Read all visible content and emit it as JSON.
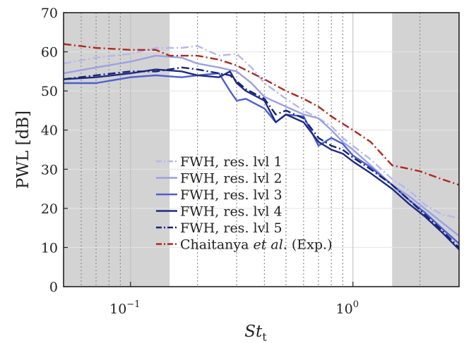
{
  "chart_data": {
    "type": "line",
    "xlabel_main": "St",
    "xlabel_sub": "t",
    "ylabel": "PWL [dB]",
    "xscale": "log",
    "xlim": [
      0.05,
      3
    ],
    "ylim": [
      0,
      70
    ],
    "yticks": [
      0,
      10,
      20,
      30,
      40,
      50,
      60,
      70
    ],
    "xtick_labels": [
      {
        "x": 0.1,
        "base": "10",
        "exp": "−1"
      },
      {
        "x": 1,
        "base": "10",
        "exp": "0"
      }
    ],
    "minor_xticks": [
      0.06,
      0.07,
      0.08,
      0.09,
      0.2,
      0.3,
      0.4,
      0.5,
      0.6,
      0.7,
      0.8,
      0.9,
      2
    ],
    "shaded_regions": [
      [
        0.05,
        0.15
      ],
      [
        1.5,
        3
      ]
    ],
    "grid": true,
    "legend_position": "bottom-center",
    "series": [
      {
        "name": "FWH, res. lvl 1",
        "color": "#b4b8ec",
        "dash": "dashdot",
        "x": [
          0.05,
          0.07,
          0.1,
          0.13,
          0.17,
          0.2,
          0.25,
          0.3,
          0.35,
          0.4,
          0.5,
          0.6,
          0.7,
          0.8,
          0.9,
          1.0,
          1.2,
          1.5,
          1.8,
          2.1,
          2.5,
          3.0
        ],
        "y": [
          57,
          58.5,
          59.5,
          61,
          61,
          61.5,
          59,
          59.5,
          56,
          52,
          48,
          45,
          43,
          41,
          38,
          36,
          32.5,
          27.5,
          24.5,
          21,
          18.5,
          17.5
        ]
      },
      {
        "name": "FWH, res. lvl 2",
        "color": "#9aa1e4",
        "dash": "solid",
        "x": [
          0.05,
          0.07,
          0.1,
          0.13,
          0.17,
          0.2,
          0.25,
          0.3,
          0.35,
          0.4,
          0.5,
          0.6,
          0.7,
          0.8,
          0.9,
          1.0,
          1.2,
          1.5,
          1.8,
          2.1,
          2.5,
          3.0
        ],
        "y": [
          54.5,
          56,
          57.5,
          59,
          58.5,
          57,
          56,
          55,
          52,
          48.5,
          46,
          44,
          43,
          40,
          37,
          35,
          31,
          26,
          23,
          20,
          16.5,
          13
        ]
      },
      {
        "name": "FWH, res. lvl 3",
        "color": "#4c5ed0",
        "dash": "solid",
        "x": [
          0.05,
          0.07,
          0.1,
          0.13,
          0.17,
          0.2,
          0.25,
          0.28,
          0.3,
          0.33,
          0.4,
          0.45,
          0.5,
          0.6,
          0.7,
          0.8,
          0.9,
          1.0,
          1.2,
          1.5,
          1.8,
          2.1,
          2.5,
          3.0
        ],
        "y": [
          52,
          52,
          53.5,
          54,
          53.5,
          54,
          54.5,
          50,
          47.5,
          48,
          45.5,
          42,
          44,
          43.5,
          36,
          38,
          36.5,
          33.5,
          30.5,
          26,
          22,
          19,
          15,
          11
        ]
      },
      {
        "name": "FWH, res. lvl 4",
        "color": "#1e2b85",
        "dash": "solid",
        "x": [
          0.05,
          0.07,
          0.1,
          0.13,
          0.17,
          0.2,
          0.25,
          0.28,
          0.3,
          0.33,
          0.4,
          0.45,
          0.5,
          0.6,
          0.7,
          0.8,
          0.9,
          1.0,
          1.2,
          1.5,
          1.8,
          2.1,
          2.5,
          3.0
        ],
        "y": [
          53,
          53.5,
          54.5,
          55.5,
          55,
          54,
          53.5,
          55,
          52,
          50,
          47.5,
          42,
          44,
          42,
          37,
          35,
          34,
          32,
          29,
          25,
          21,
          18,
          14,
          9.5
        ]
      },
      {
        "name": "FWH, res. lvl 5",
        "color": "#152478",
        "dash": "dashdot",
        "x": [
          0.05,
          0.07,
          0.1,
          0.13,
          0.17,
          0.2,
          0.25,
          0.28,
          0.3,
          0.33,
          0.4,
          0.45,
          0.5,
          0.6,
          0.7,
          0.8,
          0.9,
          1.0,
          1.2,
          1.5,
          1.8,
          2.1,
          2.5,
          3.0
        ],
        "y": [
          53,
          54,
          55,
          55,
          56,
          55.5,
          54.5,
          54,
          52.5,
          50.5,
          48,
          44,
          45,
          43,
          38,
          36,
          35,
          33,
          30,
          26,
          22,
          18.5,
          14.5,
          10
        ]
      },
      {
        "name": "Chaitanya et al. (Exp.)",
        "color": "#b0281e",
        "dash": "dashdot",
        "x": [
          0.05,
          0.07,
          0.1,
          0.13,
          0.15,
          0.2,
          0.25,
          0.3,
          0.4,
          0.5,
          0.6,
          0.7,
          0.8,
          1.0,
          1.2,
          1.5,
          2.0,
          2.5,
          3.0
        ],
        "y": [
          62,
          61,
          60.5,
          60.5,
          59,
          59,
          58,
          56.5,
          53,
          50,
          48,
          46,
          43.5,
          40,
          37,
          31,
          29.5,
          27.5,
          26
        ]
      }
    ],
    "legend_entries": [
      {
        "pre": "FWH, res. lvl 1",
        "ital": "",
        "post": ""
      },
      {
        "pre": "FWH, res. lvl 2",
        "ital": "",
        "post": ""
      },
      {
        "pre": "FWH, res. lvl 3",
        "ital": "",
        "post": ""
      },
      {
        "pre": "FWH, res. lvl 4",
        "ital": "",
        "post": ""
      },
      {
        "pre": "FWH, res. lvl 5",
        "ital": "",
        "post": ""
      },
      {
        "pre": "Chaitanya ",
        "ital": "et al.",
        "post": " (Exp.)"
      }
    ]
  }
}
